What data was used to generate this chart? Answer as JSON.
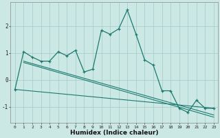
{
  "title": "",
  "xlabel": "Humidex (Indice chaleur)",
  "background_color": "#cce8e4",
  "grid_color": "#aacfcb",
  "line_color": "#1a7a6e",
  "xlim": [
    -0.5,
    23.5
  ],
  "ylim": [
    -1.6,
    2.9
  ],
  "yticks": [
    -1,
    0,
    1,
    2
  ],
  "xticks": [
    0,
    1,
    2,
    3,
    4,
    5,
    6,
    7,
    8,
    9,
    10,
    11,
    12,
    13,
    14,
    15,
    16,
    17,
    18,
    19,
    20,
    21,
    22,
    23
  ],
  "line1_x": [
    0,
    1,
    2,
    3,
    4,
    5,
    6,
    7,
    8,
    9,
    10,
    11,
    12,
    13,
    14,
    15,
    16,
    17,
    18,
    19,
    20,
    21,
    22,
    23
  ],
  "line1_y": [
    -0.35,
    1.05,
    0.85,
    0.7,
    0.7,
    1.05,
    0.9,
    1.1,
    0.3,
    0.4,
    1.85,
    1.7,
    1.9,
    2.6,
    1.7,
    0.75,
    0.55,
    -0.4,
    -0.4,
    -1.05,
    -1.2,
    -0.75,
    -1.05,
    -1.05
  ],
  "line2_x": [
    0,
    23
  ],
  "line2_y": [
    -0.35,
    -1.05
  ],
  "line3_x": [
    1,
    23
  ],
  "line3_y": [
    0.7,
    -1.3
  ],
  "line4_x": [
    1,
    23
  ],
  "line4_y": [
    0.65,
    -1.38
  ]
}
